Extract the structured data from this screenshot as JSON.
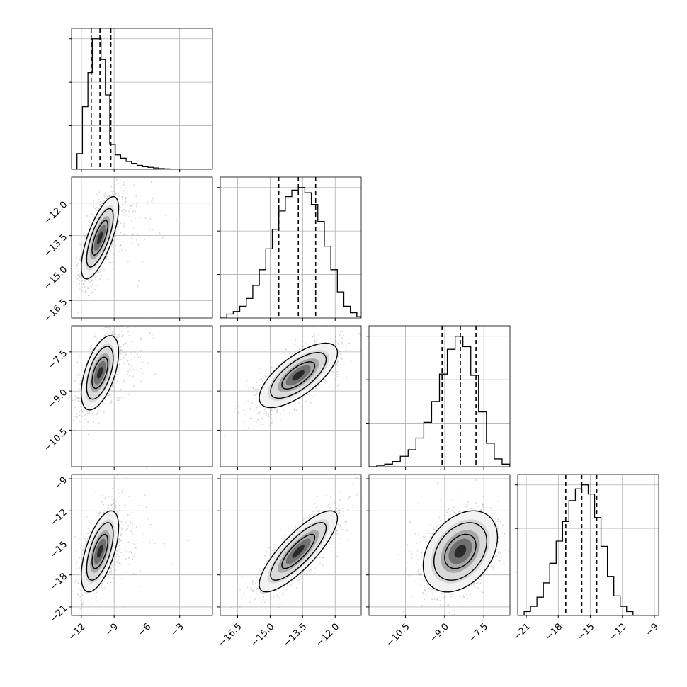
{
  "chart_data": {
    "type": "corner",
    "grid": true,
    "parameters": 4,
    "hist_tick_values": [
      0.3,
      0.6,
      0.9
    ],
    "params": [
      {
        "name": "",
        "range": [
          -12.9,
          0.0
        ],
        "ticks": [
          -12,
          -9,
          -6,
          -3
        ],
        "tick_labels": [
          "−12",
          "−9",
          "−6",
          "−3"
        ],
        "quantiles": [
          -11.1,
          -10.3,
          -9.3
        ],
        "hist": {
          "edges": [
            -12.9,
            -12.4,
            -11.9,
            -11.4,
            -11.0,
            -10.6,
            -10.2,
            -9.8,
            -9.4,
            -8.9,
            -8.4,
            -7.9,
            -7.4,
            -6.9,
            -6.4,
            -5.9,
            -5.4,
            -4.9,
            -4.4,
            -3.9,
            -3.4,
            -2.9
          ],
          "heights": [
            0.0,
            0.12,
            0.48,
            0.74,
            1.0,
            1.0,
            0.84,
            0.57,
            0.19,
            0.11,
            0.085,
            0.06,
            0.045,
            0.03,
            0.02,
            0.015,
            0.01,
            0.005,
            0.003,
            0.0,
            0.0
          ]
        }
      },
      {
        "name": "",
        "range": [
          -17.3,
          -10.8
        ],
        "ticks": [
          -16.5,
          -15.0,
          -13.5,
          -12.0
        ],
        "tick_labels": [
          "−16.5",
          "−15.0",
          "−13.5",
          "−12.0"
        ],
        "quantiles": [
          -14.6,
          -13.7,
          -12.9
        ],
        "hist": {
          "edges": [
            -17.3,
            -17.0,
            -16.7,
            -16.4,
            -16.1,
            -15.8,
            -15.5,
            -15.2,
            -14.9,
            -14.6,
            -14.3,
            -14.0,
            -13.7,
            -13.4,
            -13.1,
            -12.8,
            -12.5,
            -12.2,
            -11.9,
            -11.6,
            -11.3,
            -11.0,
            -10.8
          ],
          "heights": [
            0.0,
            0.03,
            0.05,
            0.09,
            0.15,
            0.25,
            0.37,
            0.53,
            0.68,
            0.82,
            0.93,
            0.98,
            1.0,
            0.96,
            0.87,
            0.74,
            0.55,
            0.37,
            0.2,
            0.09,
            0.04,
            0.01
          ]
        }
      },
      {
        "name": "",
        "range": [
          -11.9,
          -6.5
        ],
        "ticks": [
          -10.5,
          -9.0,
          -7.5
        ],
        "tick_labels": [
          "−10.5",
          "−9.0",
          "−7.5"
        ],
        "quantiles": [
          -9.1,
          -8.4,
          -7.8
        ],
        "hist": {
          "edges": [
            -11.9,
            -11.6,
            -11.3,
            -11.0,
            -10.7,
            -10.4,
            -10.1,
            -9.8,
            -9.5,
            -9.2,
            -8.9,
            -8.6,
            -8.3,
            -8.0,
            -7.7,
            -7.4,
            -7.1,
            -6.8,
            -6.5
          ],
          "heights": [
            0.0,
            0.01,
            0.02,
            0.04,
            0.08,
            0.13,
            0.22,
            0.34,
            0.5,
            0.71,
            0.9,
            1.0,
            0.92,
            0.7,
            0.42,
            0.18,
            0.06,
            0.02
          ]
        }
      },
      {
        "name": "",
        "range": [
          -21.8,
          -8.6
        ],
        "ticks": [
          -21,
          -18,
          -15,
          -12,
          -9
        ],
        "tick_labels": [
          "−21",
          "−18",
          "−15",
          "−12",
          "−9"
        ],
        "quantiles": [
          -17.3,
          -15.8,
          -14.4
        ],
        "hist": {
          "edges": [
            -21.8,
            -21.2,
            -20.6,
            -20.0,
            -19.4,
            -18.8,
            -18.2,
            -17.6,
            -17.0,
            -16.4,
            -15.8,
            -15.2,
            -14.6,
            -14.0,
            -13.4,
            -12.8,
            -12.2,
            -11.6,
            -11.0,
            -10.4
          ],
          "heights": [
            0.0,
            0.03,
            0.07,
            0.14,
            0.25,
            0.4,
            0.57,
            0.72,
            0.88,
            0.97,
            1.0,
            0.93,
            0.75,
            0.53,
            0.3,
            0.15,
            0.07,
            0.03,
            0.0
          ]
        }
      }
    ],
    "pairs": [
      {
        "row": 1,
        "col": 0,
        "mean": [
          -10.3,
          -13.6
        ],
        "sd": [
          0.9,
          1.0
        ],
        "corr": 0.72,
        "tail": [
          0.9,
          0.1
        ]
      },
      {
        "row": 2,
        "col": 0,
        "mean": [
          -10.3,
          -8.3
        ],
        "sd": [
          0.9,
          0.75
        ],
        "corr": 0.55,
        "tail": [
          0.9,
          0.1
        ]
      },
      {
        "row": 2,
        "col": 1,
        "mean": [
          -13.7,
          -8.4
        ],
        "sd": [
          0.95,
          0.65
        ],
        "corr": 0.7,
        "tail": [
          0,
          0
        ]
      },
      {
        "row": 3,
        "col": 0,
        "mean": [
          -10.3,
          -15.8
        ],
        "sd": [
          0.9,
          2.0
        ],
        "corr": 0.6,
        "tail": [
          0.9,
          0.2
        ]
      },
      {
        "row": 3,
        "col": 1,
        "mean": [
          -13.7,
          -15.8
        ],
        "sd": [
          0.95,
          2.0
        ],
        "corr": 0.82,
        "tail": [
          0,
          0
        ]
      },
      {
        "row": 3,
        "col": 2,
        "mean": [
          -8.4,
          -15.8
        ],
        "sd": [
          0.75,
          2.0
        ],
        "corr": 0.35,
        "tail": [
          0,
          0
        ]
      }
    ]
  }
}
